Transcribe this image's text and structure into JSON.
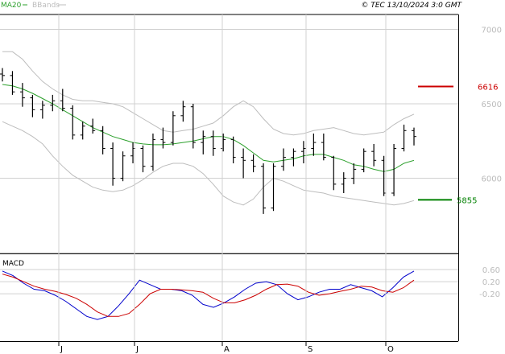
{
  "legend": {
    "items": [
      {
        "label": "MA20",
        "color": "#2ca02c"
      },
      {
        "label": "BBands",
        "color": "#bdbdbd"
      }
    ]
  },
  "copyright": "© TEC 13/10/2024 3:0 GMT",
  "macd_label": "MACD",
  "chart_data": [
    {
      "type": "ohlc",
      "y_ticks": [
        "7000",
        "6500",
        "6000"
      ],
      "ylim": [
        5500,
        7100
      ],
      "x_ticks": [
        "J",
        "J",
        "A",
        "S",
        "O"
      ],
      "levels": [
        {
          "label": "6616",
          "value": 6616,
          "color": "#cc0000"
        },
        {
          "label": "5855",
          "value": 5855,
          "color": "#008000"
        }
      ],
      "bar_color": "#000000",
      "series": [
        {
          "name": "MA20",
          "color": "#2ca02c",
          "values": [
            6630,
            6620,
            6600,
            6570,
            6535,
            6500,
            6460,
            6420,
            6380,
            6340,
            6310,
            6280,
            6260,
            6240,
            6230,
            6225,
            6225,
            6230,
            6240,
            6250,
            6265,
            6280,
            6280,
            6260,
            6220,
            6170,
            6120,
            6110,
            6120,
            6130,
            6150,
            6160,
            6160,
            6140,
            6120,
            6090,
            6080,
            6060,
            6045,
            6060,
            6100,
            6120
          ]
        },
        {
          "name": "BBands",
          "color": "#bdbdbd",
          "values": [
            6850,
            6850,
            6800,
            6720,
            6650,
            6600,
            6560,
            6530,
            6520,
            6520,
            6510,
            6500,
            6480,
            6440,
            6400,
            6360,
            6320,
            6310,
            6320,
            6330,
            6350,
            6370,
            6420,
            6480,
            6520,
            6480,
            6400,
            6330,
            6300,
            6290,
            6300,
            6320,
            6330,
            6340,
            6320,
            6300,
            6290,
            6300,
            6310,
            6360,
            6400,
            6430
          ]
        },
        {
          "name": "BBands",
          "color": "#bdbdbd",
          "values": [
            6380,
            6350,
            6320,
            6280,
            6230,
            6150,
            6080,
            6020,
            5980,
            5940,
            5920,
            5910,
            5920,
            5950,
            5990,
            6040,
            6080,
            6100,
            6100,
            6080,
            6030,
            5960,
            5880,
            5840,
            5820,
            5860,
            5940,
            6000,
            5980,
            5950,
            5920,
            5910,
            5900,
            5880,
            5870,
            5860,
            5850,
            5840,
            5830,
            5820,
            5830,
            5850
          ]
        }
      ],
      "ohlc": [
        [
          6700,
          6740,
          6650,
          6690
        ],
        [
          6690,
          6720,
          6560,
          6580
        ],
        [
          6580,
          6640,
          6480,
          6540
        ],
        [
          6540,
          6560,
          6410,
          6460
        ],
        [
          6460,
          6520,
          6400,
          6490
        ],
        [
          6490,
          6560,
          6450,
          6520
        ],
        [
          6520,
          6600,
          6450,
          6470
        ],
        [
          6470,
          6490,
          6260,
          6290
        ],
        [
          6290,
          6380,
          6260,
          6350
        ],
        [
          6350,
          6400,
          6300,
          6320
        ],
        [
          6320,
          6350,
          6160,
          6200
        ],
        [
          6200,
          6240,
          5950,
          6000
        ],
        [
          6000,
          6180,
          5980,
          6150
        ],
        [
          6150,
          6240,
          6100,
          6200
        ],
        [
          6200,
          6220,
          6040,
          6080
        ],
        [
          6080,
          6300,
          6050,
          6260
        ],
        [
          6260,
          6340,
          6200,
          6240
        ],
        [
          6240,
          6450,
          6220,
          6420
        ],
        [
          6420,
          6520,
          6380,
          6480
        ],
        [
          6480,
          6500,
          6200,
          6240
        ],
        [
          6240,
          6320,
          6160,
          6280
        ],
        [
          6280,
          6320,
          6150,
          6200
        ],
        [
          6200,
          6300,
          6180,
          6260
        ],
        [
          6260,
          6280,
          6100,
          6140
        ],
        [
          6140,
          6200,
          6000,
          6120
        ],
        [
          6120,
          6160,
          6040,
          6080
        ],
        [
          6080,
          6100,
          5760,
          5800
        ],
        [
          5800,
          6100,
          5780,
          6080
        ],
        [
          6080,
          6200,
          6050,
          6140
        ],
        [
          6140,
          6200,
          6080,
          6180
        ],
        [
          6180,
          6250,
          6100,
          6200
        ],
        [
          6200,
          6300,
          6150,
          6240
        ],
        [
          6240,
          6300,
          6120,
          6140
        ],
        [
          6140,
          6150,
          5920,
          5960
        ],
        [
          5960,
          6040,
          5900,
          6000
        ],
        [
          6000,
          6100,
          5960,
          6060
        ],
        [
          6060,
          6200,
          6040,
          6180
        ],
        [
          6180,
          6230,
          6080,
          6120
        ],
        [
          6120,
          6150,
          5880,
          5900
        ],
        [
          5900,
          6230,
          5880,
          6200
        ],
        [
          6200,
          6360,
          6180,
          6320
        ],
        [
          6320,
          6340,
          6220,
          6280
        ]
      ]
    },
    {
      "type": "line",
      "title": "MACD",
      "y_ticks": [
        "0.60",
        "0.20",
        "-0.20"
      ],
      "ylim": [
        -1.5,
        1.0
      ],
      "series": [
        {
          "name": "MACD",
          "color": "#0000cc",
          "values": [
            0.55,
            0.4,
            0.15,
            -0.05,
            -0.1,
            -0.25,
            -0.45,
            -0.7,
            -0.95,
            -1.05,
            -0.95,
            -0.6,
            -0.2,
            0.25,
            0.1,
            -0.05,
            -0.05,
            -0.1,
            -0.25,
            -0.55,
            -0.65,
            -0.5,
            -0.3,
            -0.05,
            0.15,
            0.2,
            0.1,
            -0.2,
            -0.4,
            -0.3,
            -0.15,
            -0.05,
            -0.05,
            0.1,
            0.0,
            -0.1,
            -0.3,
            0.0,
            0.35,
            0.55
          ]
        },
        {
          "name": "Signal",
          "color": "#cc0000",
          "values": [
            0.45,
            0.35,
            0.2,
            0.05,
            -0.05,
            -0.12,
            -0.22,
            -0.35,
            -0.55,
            -0.8,
            -0.95,
            -0.95,
            -0.85,
            -0.55,
            -0.2,
            -0.05,
            -0.05,
            -0.07,
            -0.1,
            -0.15,
            -0.35,
            -0.5,
            -0.5,
            -0.4,
            -0.25,
            -0.05,
            0.1,
            0.12,
            0.05,
            -0.15,
            -0.25,
            -0.2,
            -0.12,
            -0.05,
            0.05,
            0.02,
            -0.1,
            -0.15,
            0.0,
            0.25
          ]
        }
      ]
    }
  ]
}
